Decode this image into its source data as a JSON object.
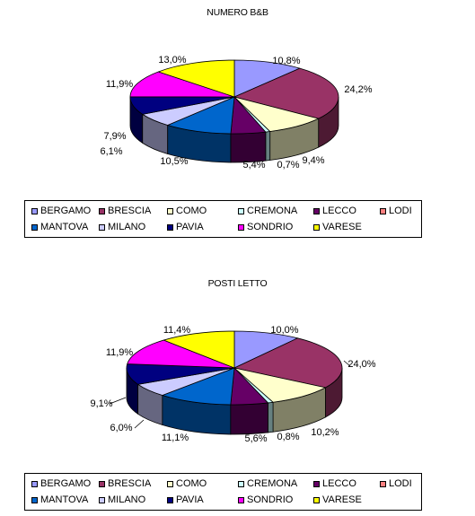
{
  "chart_data": [
    {
      "type": "pie",
      "title": "NUMERO B&B",
      "categories": [
        "BERGAMO",
        "BRESCIA",
        "COMO",
        "CREMONA",
        "LECCO",
        "LODI",
        "MANTOVA",
        "MILANO",
        "PAVIA",
        "SONDRIO",
        "VARESE"
      ],
      "values": [
        10.8,
        24.2,
        9.4,
        0.7,
        5.4,
        0.0,
        10.5,
        6.1,
        7.9,
        11.9,
        13.0
      ],
      "labels": [
        "10,8%",
        "24,2%",
        "9,4%",
        "0,7%",
        "5,4%",
        "",
        "10,5%",
        "6,1%",
        "7,9%",
        "11,9%",
        "13,0%"
      ],
      "legend_placement": "bottom"
    },
    {
      "type": "pie",
      "title": "POSTI LETTO",
      "categories": [
        "BERGAMO",
        "BRESCIA",
        "COMO",
        "CREMONA",
        "LECCO",
        "LODI",
        "MANTOVA",
        "MILANO",
        "PAVIA",
        "SONDRIO",
        "VARESE"
      ],
      "values": [
        10.0,
        24.0,
        10.2,
        0.8,
        5.6,
        0.0,
        11.1,
        6.0,
        9.1,
        11.9,
        11.4
      ],
      "labels": [
        "10,0%",
        "24,0%",
        "10,2%",
        "0,8%",
        "5,6%",
        "",
        "11,1%",
        "6,0%",
        "9,1%",
        "11,9%",
        "11,4%"
      ],
      "legend_placement": "bottom"
    }
  ],
  "colors": {
    "BERGAMO": "#9999ff",
    "BRESCIA": "#993366",
    "COMO": "#ffffcc",
    "CREMONA": "#ccffff",
    "LECCO": "#660066",
    "LODI": "#ff8080",
    "MANTOVA": "#0066cc",
    "MILANO": "#ccccff",
    "PAVIA": "#000080",
    "SONDRIO": "#ff00ff",
    "VARESE": "#ffff00"
  }
}
